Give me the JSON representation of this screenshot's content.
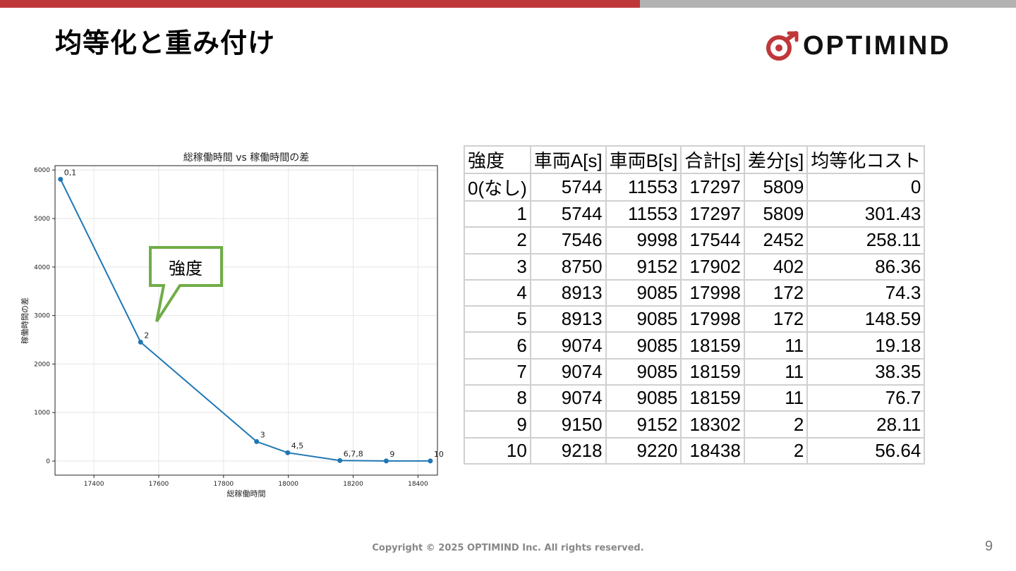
{
  "header": {
    "title": "均等化と重み付け",
    "logo_text": "OPTIMIND"
  },
  "colors": {
    "accent_red": "#c0373a",
    "accent_gray": "#b3b3b3",
    "line": "#1f77b4",
    "callout_border": "#70ad47"
  },
  "chart_data": {
    "type": "line",
    "title": "総稼働時間 vs 稼働時間の差",
    "xlabel": "総稼働時間",
    "ylabel": "稼働時間の差",
    "xlim": [
      17280,
      18460
    ],
    "ylim": [
      -290,
      6090
    ],
    "x_ticks": [
      17400,
      17600,
      17800,
      18000,
      18200,
      18400
    ],
    "y_ticks": [
      0,
      1000,
      2000,
      3000,
      4000,
      5000,
      6000
    ],
    "grid": true,
    "points": [
      {
        "x": 17297,
        "y": 5809,
        "label": "0,1"
      },
      {
        "x": 17544,
        "y": 2452,
        "label": "2"
      },
      {
        "x": 17902,
        "y": 402,
        "label": "3"
      },
      {
        "x": 17998,
        "y": 172,
        "label": "4,5"
      },
      {
        "x": 18159,
        "y": 11,
        "label": "6,7,8"
      },
      {
        "x": 18302,
        "y": 2,
        "label": "9"
      },
      {
        "x": 18438,
        "y": 2,
        "label": "10"
      }
    ]
  },
  "callout": {
    "text": "強度"
  },
  "table": {
    "headers": [
      "強度",
      "車両A[s]",
      "車両B[s]",
      "合計[s]",
      "差分[s]",
      "均等化コスト"
    ],
    "rows": [
      [
        "0(なし)",
        "5744",
        "11553",
        "17297",
        "5809",
        "0"
      ],
      [
        "1",
        "5744",
        "11553",
        "17297",
        "5809",
        "301.43"
      ],
      [
        "2",
        "7546",
        "9998",
        "17544",
        "2452",
        "258.11"
      ],
      [
        "3",
        "8750",
        "9152",
        "17902",
        "402",
        "86.36"
      ],
      [
        "4",
        "8913",
        "9085",
        "17998",
        "172",
        "74.3"
      ],
      [
        "5",
        "8913",
        "9085",
        "17998",
        "172",
        "148.59"
      ],
      [
        "6",
        "9074",
        "9085",
        "18159",
        "11",
        "19.18"
      ],
      [
        "7",
        "9074",
        "9085",
        "18159",
        "11",
        "38.35"
      ],
      [
        "8",
        "9074",
        "9085",
        "18159",
        "11",
        "76.7"
      ],
      [
        "9",
        "9150",
        "9152",
        "18302",
        "2",
        "28.11"
      ],
      [
        "10",
        "9218",
        "9220",
        "18438",
        "2",
        "56.64"
      ]
    ]
  },
  "footer": {
    "copyright": "Copyright © 2025 OPTIMIND Inc. All rights reserved.",
    "page_number": "9"
  }
}
